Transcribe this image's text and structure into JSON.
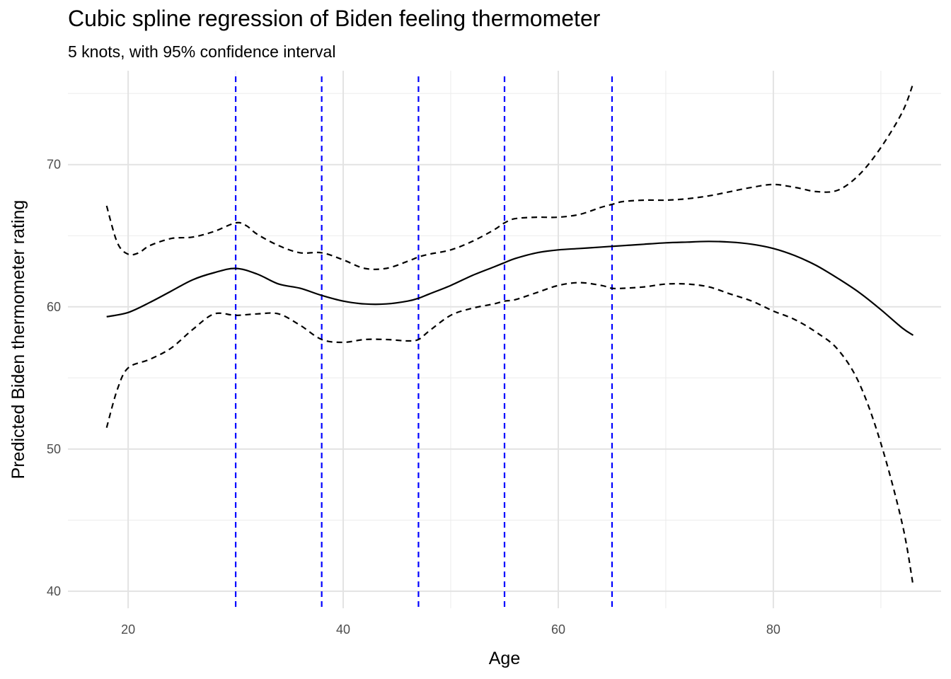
{
  "chart_data": {
    "type": "line",
    "title": "Cubic spline regression of Biden feeling thermometer",
    "subtitle": "5 knots, with 95% confidence interval",
    "xlabel": "Age",
    "ylabel": "Predicted Biden thermometer rating",
    "xlim": [
      14.4,
      95.6
    ],
    "ylim": [
      38.8,
      76.6
    ],
    "x_ticks": [
      20,
      40,
      60,
      80
    ],
    "x_tick_labels": [
      "20",
      "40",
      "60",
      "80"
    ],
    "y_ticks": [
      40,
      50,
      60,
      70
    ],
    "y_tick_labels": [
      "40",
      "50",
      "60",
      "70"
    ],
    "grid": true,
    "knots": [
      30,
      38,
      47,
      55,
      65
    ],
    "knot_color": "#0000ff",
    "line_color": "#000000",
    "series": [
      {
        "role": "fit",
        "style": "solid",
        "x": [
          18,
          20,
          22,
          24,
          26,
          28,
          30,
          32,
          34,
          36,
          38,
          40,
          42,
          44,
          46,
          47,
          48,
          50,
          52,
          54,
          55,
          56,
          58,
          60,
          62,
          64,
          65,
          66,
          68,
          70,
          72,
          74,
          76,
          78,
          80,
          82,
          84,
          86,
          88,
          90,
          92,
          93
        ],
        "y": [
          59.3,
          59.6,
          60.3,
          61.1,
          61.9,
          62.4,
          62.7,
          62.3,
          61.6,
          61.3,
          60.8,
          60.4,
          60.2,
          60.2,
          60.4,
          60.6,
          60.9,
          61.5,
          62.2,
          62.8,
          63.1,
          63.4,
          63.8,
          64.0,
          64.1,
          64.2,
          64.25,
          64.3,
          64.4,
          64.5,
          64.55,
          64.6,
          64.55,
          64.4,
          64.1,
          63.6,
          62.9,
          62.0,
          61.0,
          59.8,
          58.5,
          58.0
        ]
      },
      {
        "role": "upper-95-ci",
        "style": "dashed",
        "x": [
          18,
          19,
          20,
          21,
          22,
          24,
          26,
          28,
          30,
          31,
          32,
          34,
          36,
          38,
          40,
          42,
          44,
          46,
          47,
          48,
          50,
          52,
          54,
          55,
          56,
          58,
          60,
          62,
          64,
          65,
          66,
          68,
          70,
          72,
          74,
          76,
          78,
          80,
          82,
          84,
          86,
          88,
          90,
          92,
          93
        ],
        "y": [
          67.1,
          64.5,
          63.7,
          63.8,
          64.3,
          64.8,
          64.9,
          65.3,
          65.9,
          65.7,
          65.1,
          64.3,
          63.8,
          63.8,
          63.3,
          62.7,
          62.7,
          63.2,
          63.5,
          63.7,
          64.0,
          64.6,
          65.4,
          65.9,
          66.2,
          66.3,
          66.3,
          66.5,
          67.0,
          67.2,
          67.4,
          67.5,
          67.5,
          67.6,
          67.8,
          68.1,
          68.4,
          68.6,
          68.4,
          68.1,
          68.2,
          69.3,
          71.2,
          73.7,
          75.7
        ]
      },
      {
        "role": "lower-95-ci",
        "style": "dashed",
        "x": [
          18,
          19,
          20,
          22,
          24,
          26,
          28,
          30,
          32,
          34,
          36,
          38,
          40,
          42,
          44,
          46,
          47,
          48,
          50,
          52,
          54,
          55,
          56,
          58,
          60,
          62,
          64,
          65,
          66,
          68,
          70,
          72,
          74,
          76,
          78,
          80,
          82,
          84,
          86,
          88,
          90,
          92,
          93
        ],
        "y": [
          51.5,
          54.2,
          55.7,
          56.3,
          57.1,
          58.4,
          59.5,
          59.4,
          59.5,
          59.5,
          58.7,
          57.7,
          57.5,
          57.7,
          57.7,
          57.6,
          57.7,
          58.3,
          59.4,
          59.9,
          60.2,
          60.4,
          60.5,
          61.0,
          61.5,
          61.7,
          61.5,
          61.3,
          61.3,
          61.4,
          61.6,
          61.6,
          61.4,
          60.9,
          60.4,
          59.7,
          59.1,
          58.2,
          57.0,
          54.6,
          50.4,
          44.7,
          40.4
        ]
      }
    ]
  }
}
